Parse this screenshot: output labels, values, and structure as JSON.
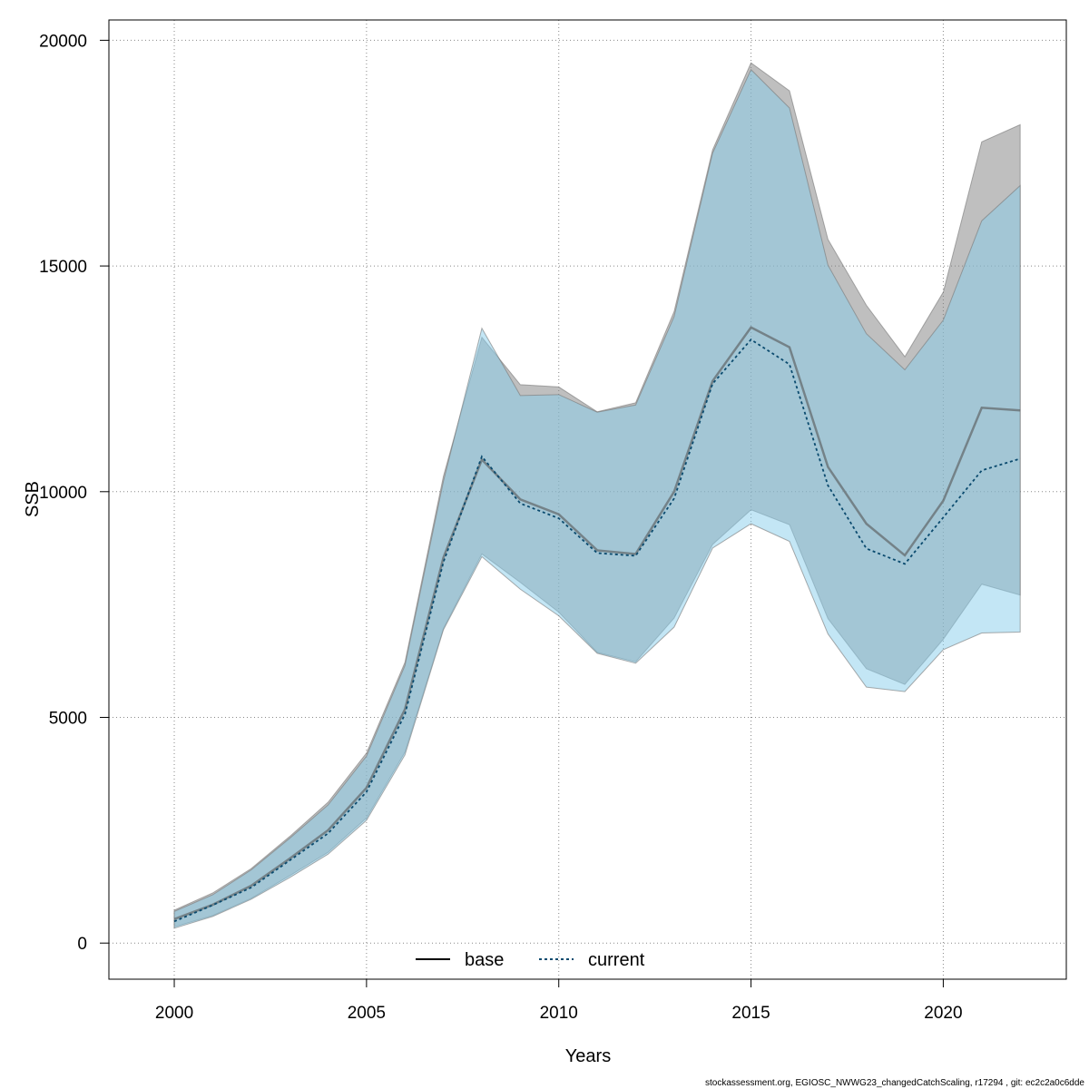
{
  "chart_data": {
    "type": "line",
    "title": "",
    "xlabel": "Years",
    "ylabel": "SSB",
    "xlim": [
      1998.3,
      2023.2
    ],
    "ylim": [
      -800,
      20450
    ],
    "x_ticks": [
      2000,
      2005,
      2010,
      2015,
      2020
    ],
    "x_tick_labels": [
      "2000",
      "2005",
      "2010",
      "2015",
      "2020"
    ],
    "y_ticks": [
      0,
      5000,
      10000,
      15000,
      20000
    ],
    "y_tick_labels": [
      "0",
      "5000",
      "10000",
      "15000",
      "20000"
    ],
    "grid": true,
    "legend_position": "bottom",
    "x": [
      2000,
      2001,
      2002,
      2003,
      2004,
      2005,
      2006,
      2007,
      2008,
      2009,
      2010,
      2011,
      2012,
      2013,
      2014,
      2015,
      2016,
      2017,
      2018,
      2019,
      2020,
      2021,
      2022
    ],
    "series": [
      {
        "name": "base",
        "line_style": "solid",
        "line_color": "#555555",
        "band_color": "#808080",
        "values": [
          530,
          850,
          1270,
          1870,
          2500,
          3440,
          5180,
          8540,
          10710,
          9830,
          9500,
          8700,
          8620,
          10000,
          12450,
          13640,
          13200,
          10550,
          9290,
          8590,
          9800,
          11860,
          11800
        ],
        "lower": [
          360,
          610,
          990,
          1490,
          2010,
          2770,
          4230,
          6970,
          8620,
          7990,
          7330,
          6440,
          6230,
          7200,
          8830,
          9600,
          9270,
          7190,
          6080,
          5730,
          6730,
          7950,
          7710
        ],
        "upper": [
          730,
          1110,
          1650,
          2360,
          3120,
          4210,
          6220,
          10340,
          13420,
          12370,
          12320,
          11770,
          11970,
          13990,
          17570,
          19500,
          18880,
          15590,
          14130,
          12990,
          14420,
          17750,
          18130
        ]
      },
      {
        "name": "current",
        "line_style": "dashed",
        "line_color": "#0a4a6e",
        "band_color": "#87ceeb",
        "values": [
          480,
          840,
          1230,
          1830,
          2430,
          3350,
          5070,
          8440,
          10780,
          9740,
          9410,
          8640,
          8580,
          9850,
          12390,
          13370,
          12820,
          10140,
          8740,
          8400,
          9430,
          10470,
          10730
        ],
        "lower": [
          330,
          590,
          970,
          1450,
          1970,
          2720,
          4170,
          6940,
          8560,
          7840,
          7250,
          6420,
          6200,
          7000,
          8750,
          9290,
          8900,
          6850,
          5670,
          5570,
          6500,
          6870,
          6890
        ],
        "upper": [
          700,
          1070,
          1620,
          2320,
          3060,
          4140,
          6150,
          10230,
          13620,
          12130,
          12150,
          11760,
          11920,
          13880,
          17500,
          19350,
          18500,
          15020,
          13500,
          12700,
          13800,
          16000,
          16780
        ]
      }
    ]
  },
  "footer": "stockassessment.org, EGIOSC_NWWG23_changedCatchScaling, r17294 , git: ec2c2a0c6dde"
}
